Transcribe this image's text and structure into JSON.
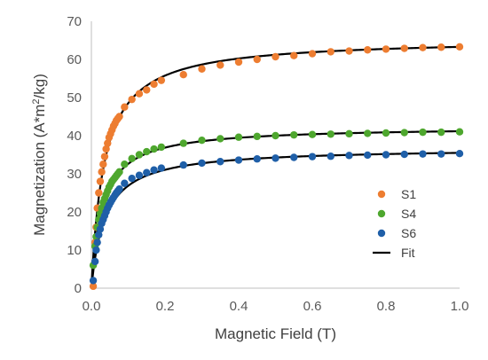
{
  "chart_data": {
    "type": "scatter",
    "xlabel": "Magnetic Field (T)",
    "ylabel_parts": {
      "prefix": "Magnetization (A*m",
      "sup": "2",
      "suffix": "/kg)"
    },
    "xlim": [
      0,
      1.0
    ],
    "ylim": [
      0,
      70
    ],
    "xticks": [
      0.0,
      0.2,
      0.4,
      0.6,
      0.8,
      1.0
    ],
    "xtick_labels": [
      "0.0",
      "0.2",
      "0.4",
      "0.6",
      "0.8",
      "1.0"
    ],
    "yticks": [
      0,
      10,
      20,
      30,
      40,
      50,
      60,
      70
    ],
    "ytick_labels": [
      "0",
      "10",
      "20",
      "30",
      "40",
      "50",
      "60",
      "70"
    ],
    "grid": false,
    "legend_position": "bottom-right",
    "series": [
      {
        "name": "S1",
        "color": "#ED7D31",
        "marker": "circle",
        "x": [
          0.005,
          0.01,
          0.013,
          0.016,
          0.02,
          0.024,
          0.028,
          0.032,
          0.036,
          0.04,
          0.044,
          0.048,
          0.052,
          0.056,
          0.06,
          0.064,
          0.068,
          0.072,
          0.076,
          0.09,
          0.11,
          0.13,
          0.15,
          0.17,
          0.19,
          0.25,
          0.3,
          0.35,
          0.4,
          0.45,
          0.5,
          0.55,
          0.6,
          0.65,
          0.7,
          0.75,
          0.8,
          0.85,
          0.9,
          0.95,
          1.0
        ],
        "y": [
          0.5,
          12,
          16,
          21,
          25,
          28,
          30.5,
          32.5,
          34.5,
          36.5,
          38,
          39.5,
          40.5,
          41.5,
          42.5,
          43.2,
          44,
          44.5,
          45,
          47.5,
          49.5,
          51,
          52,
          53.5,
          54.5,
          56,
          57.5,
          58.5,
          59.3,
          60,
          60.7,
          61,
          61.5,
          62,
          62.2,
          62.5,
          62.7,
          62.9,
          63.1,
          63.2,
          63.3
        ]
      },
      {
        "name": "S4",
        "color": "#4EA72E",
        "marker": "circle",
        "x": [
          0.005,
          0.01,
          0.013,
          0.016,
          0.02,
          0.024,
          0.028,
          0.032,
          0.036,
          0.04,
          0.044,
          0.048,
          0.052,
          0.056,
          0.06,
          0.064,
          0.068,
          0.072,
          0.076,
          0.09,
          0.11,
          0.13,
          0.15,
          0.17,
          0.19,
          0.25,
          0.3,
          0.35,
          0.4,
          0.45,
          0.5,
          0.55,
          0.6,
          0.65,
          0.7,
          0.75,
          0.8,
          0.85,
          0.9,
          0.95,
          1.0
        ],
        "y": [
          6,
          11,
          13.5,
          16,
          18,
          19.5,
          21,
          22.5,
          23.5,
          24.5,
          25.5,
          26.5,
          27.2,
          28,
          28.5,
          29,
          29.5,
          30,
          30.5,
          32.5,
          34,
          35,
          35.8,
          36.5,
          37,
          38,
          38.8,
          39.2,
          39.6,
          39.8,
          40,
          40.2,
          40.3,
          40.4,
          40.5,
          40.6,
          40.7,
          40.8,
          40.9,
          40.9,
          41
        ]
      },
      {
        "name": "S6",
        "color": "#1F5FA8",
        "marker": "circle",
        "x": [
          0.005,
          0.01,
          0.013,
          0.016,
          0.02,
          0.024,
          0.028,
          0.032,
          0.036,
          0.04,
          0.044,
          0.048,
          0.052,
          0.056,
          0.06,
          0.064,
          0.068,
          0.072,
          0.076,
          0.09,
          0.11,
          0.13,
          0.15,
          0.17,
          0.19,
          0.25,
          0.3,
          0.35,
          0.4,
          0.45,
          0.5,
          0.55,
          0.6,
          0.65,
          0.7,
          0.75,
          0.8,
          0.85,
          0.9,
          0.95,
          1.0
        ],
        "y": [
          2,
          7,
          10,
          12,
          14,
          15.5,
          17,
          18,
          19,
          20,
          21,
          21.8,
          22.5,
          23.2,
          23.8,
          24.4,
          25,
          25.5,
          26,
          27.5,
          28.8,
          29.6,
          30.3,
          31,
          31.5,
          32.3,
          32.8,
          33.2,
          33.6,
          33.9,
          34.1,
          34.3,
          34.5,
          34.6,
          34.8,
          34.9,
          35,
          35.1,
          35.2,
          35.2,
          35.3
        ]
      }
    ],
    "fits": [
      {
        "name": "Fit",
        "color": "#000000",
        "ms": 65.5,
        "h": 0.035
      },
      {
        "name": "Fit",
        "color": "#000000",
        "ms": 42.4,
        "h": 0.03
      },
      {
        "name": "Fit",
        "color": "#000000",
        "ms": 36.8,
        "h": 0.037
      }
    ],
    "legend": [
      {
        "label": "S1",
        "color": "#ED7D31",
        "kind": "marker"
      },
      {
        "label": "S4",
        "color": "#4EA72E",
        "kind": "marker"
      },
      {
        "label": "S6",
        "color": "#1F5FA8",
        "kind": "marker"
      },
      {
        "label": "Fit",
        "color": "#000000",
        "kind": "line"
      }
    ]
  }
}
